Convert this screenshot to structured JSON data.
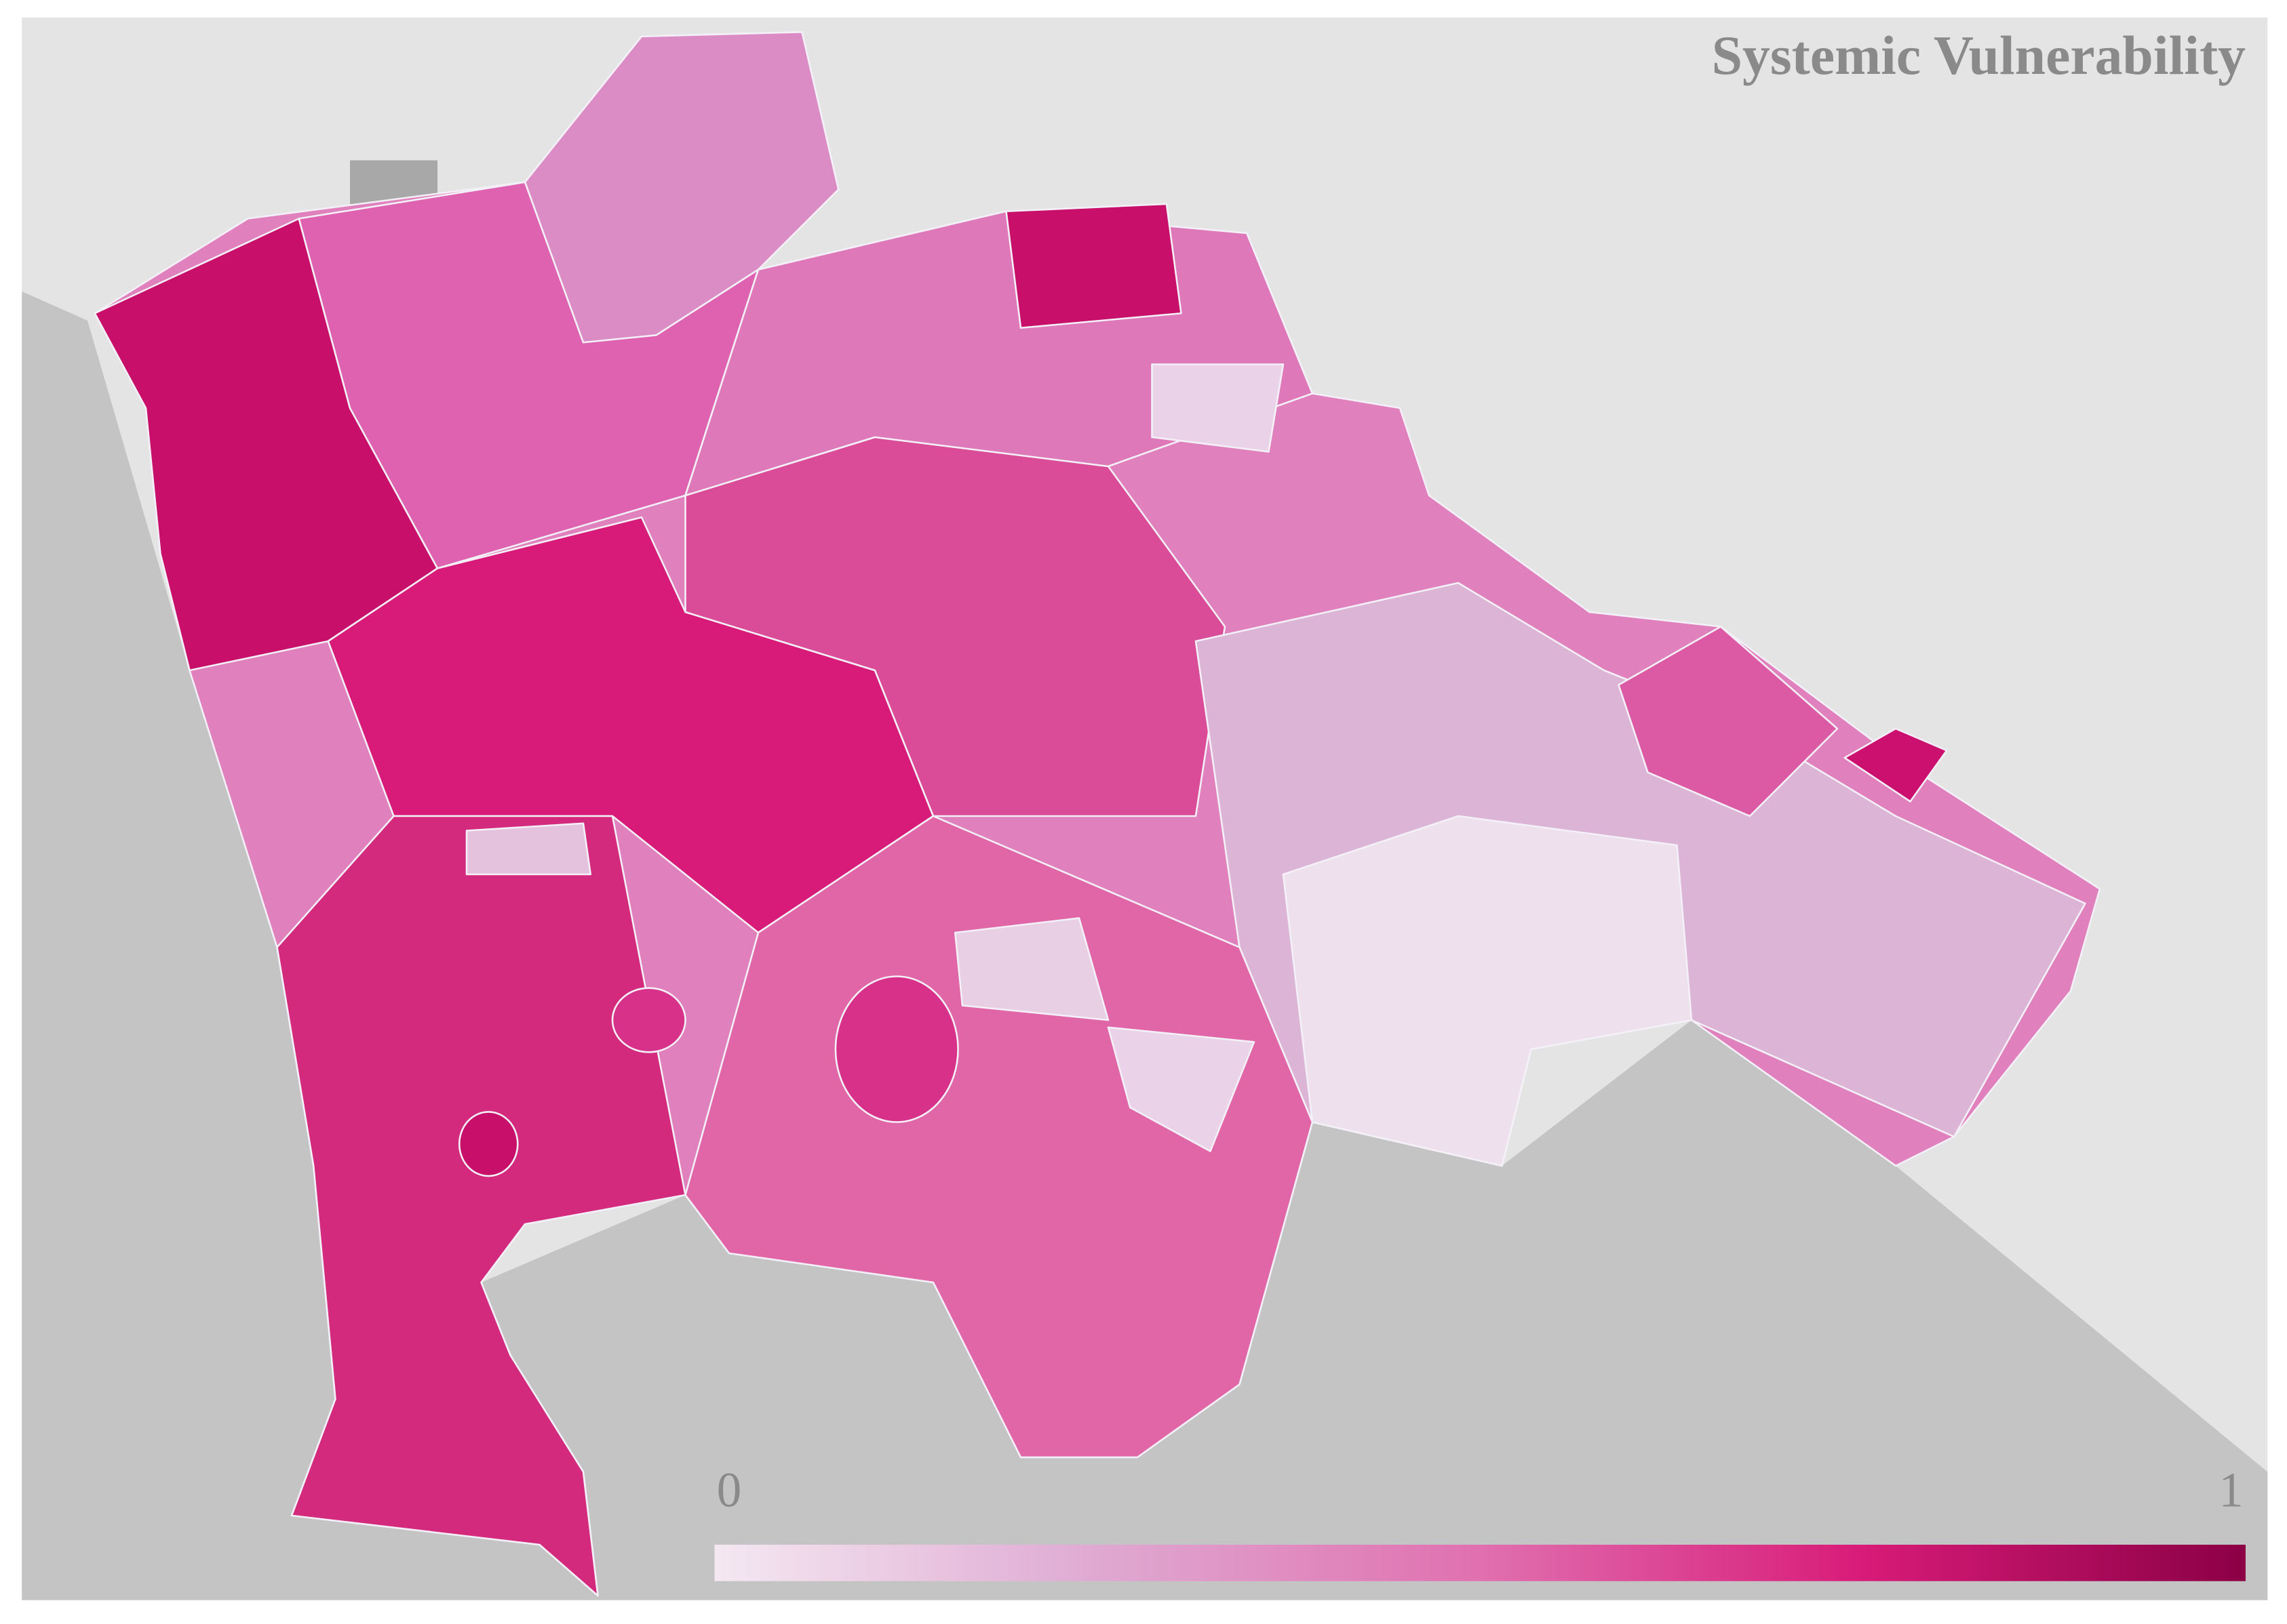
{
  "title": "Systemic Vulnerability",
  "legend": {
    "min": 0,
    "max": 1,
    "colors": [
      "#f4e8f2",
      "#dfa9d2",
      "#e070b0",
      "#d81b78",
      "#8b0046"
    ]
  }
}
